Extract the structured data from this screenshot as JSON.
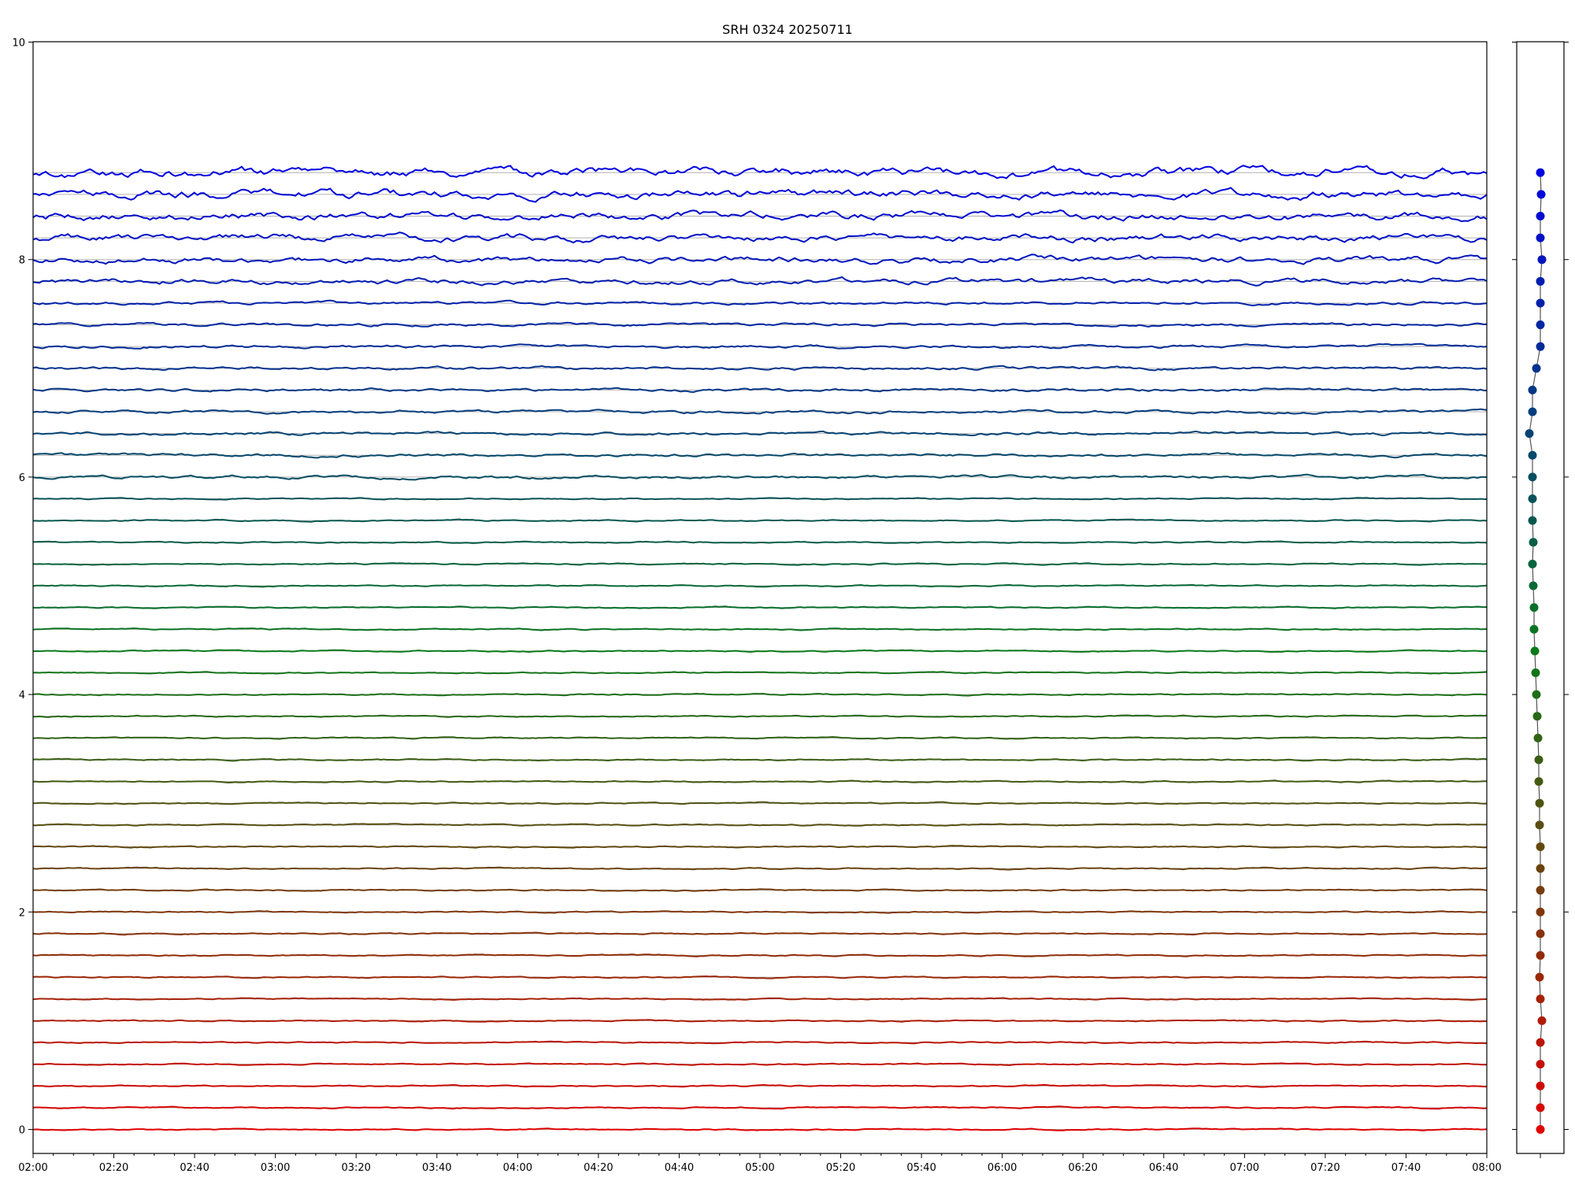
{
  "chart_data": {
    "type": "line",
    "title": "SRH 0324 20250711",
    "xlabel": "",
    "ylabel": "",
    "xlim": [
      "02:00",
      "08:00"
    ],
    "ylim": [
      0,
      10
    ],
    "x_ticks": [
      "02:00",
      "02:20",
      "02:40",
      "03:00",
      "03:20",
      "03:40",
      "04:00",
      "04:20",
      "04:40",
      "05:00",
      "05:20",
      "05:40",
      "06:00",
      "06:20",
      "06:40",
      "07:00",
      "07:20",
      "07:40",
      "08:00"
    ],
    "y_ticks": [
      "0",
      "2",
      "4",
      "6",
      "8",
      "10"
    ],
    "grid": "horizontal lines at each trace baseline",
    "legend": "none",
    "baselines": [
      0.0,
      0.2,
      0.4,
      0.6,
      0.8,
      1.0,
      1.2,
      1.4,
      1.6,
      1.8,
      2.0,
      2.2,
      2.4,
      2.6,
      2.8,
      3.0,
      3.2,
      3.4,
      3.6,
      3.8,
      4.0,
      4.2,
      4.4,
      4.6,
      4.8,
      5.0,
      5.2,
      5.4,
      5.6,
      5.8,
      6.0,
      6.2,
      6.4,
      6.6,
      6.8,
      7.0,
      7.2,
      7.4,
      7.6,
      7.8,
      8.0,
      8.2,
      8.4,
      8.6,
      8.8
    ],
    "side_panel_values": [
      0.0,
      0.0,
      0.0,
      0.0,
      0.0,
      0.02,
      0.0,
      -0.01,
      0.0,
      0.0,
      0.0,
      0.0,
      0.0,
      0.0,
      -0.01,
      -0.01,
      -0.02,
      -0.02,
      -0.03,
      -0.04,
      -0.05,
      -0.06,
      -0.07,
      -0.08,
      -0.08,
      -0.09,
      -0.1,
      -0.09,
      -0.1,
      -0.1,
      -0.1,
      -0.1,
      -0.14,
      -0.1,
      -0.1,
      -0.05,
      0.0,
      0.0,
      0.0,
      0.0,
      0.02,
      0.0,
      0.0,
      0.01,
      0.0
    ],
    "colors": {
      "start": "#e00000",
      "mid": "#0a7a1a",
      "end": "#0000e0",
      "grid": "#b0b0b0",
      "side_line": "#555555"
    }
  }
}
